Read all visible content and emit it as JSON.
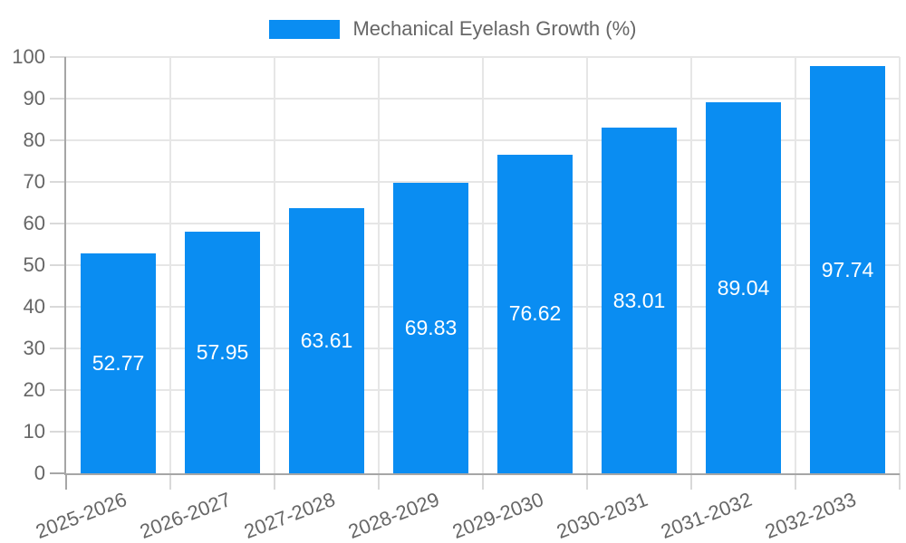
{
  "chart_data": {
    "type": "bar",
    "title": "Mechanical Eyelash Growth (%)",
    "legend": {
      "position": "top",
      "items": [
        "Mechanical Eyelash Growth (%)"
      ]
    },
    "categories": [
      "2025-2026",
      "2026-2027",
      "2027-2028",
      "2028-2029",
      "2029-2030",
      "2030-2031",
      "2031-2032",
      "2032-2033"
    ],
    "series": [
      {
        "name": "Mechanical Eyelash Growth (%)",
        "values": [
          52.77,
          57.95,
          63.61,
          69.83,
          76.62,
          83.01,
          89.04,
          97.74
        ]
      }
    ],
    "value_label_decimals": 2,
    "ylim": [
      0,
      100
    ],
    "yticks": [
      0,
      10,
      20,
      30,
      40,
      50,
      60,
      70,
      80,
      90,
      100
    ],
    "grid": true,
    "colors": {
      "bar": "#0a8df2",
      "bar_value_label": "#ffffff",
      "axis_text": "#666666",
      "grid_line": "#e6e6e6",
      "tick_mark": "#d9d9d9",
      "axis_line": "#a6a6a6",
      "background": "#ffffff"
    }
  }
}
